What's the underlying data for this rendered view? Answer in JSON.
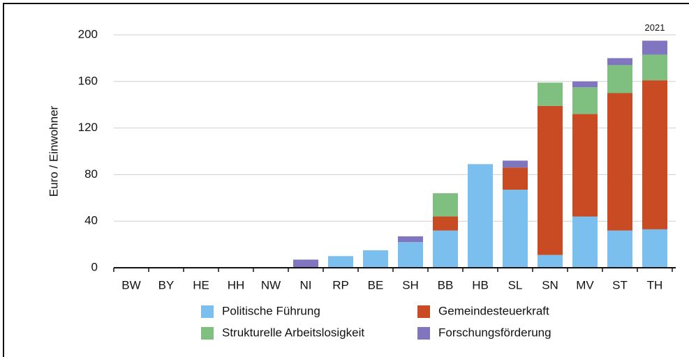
{
  "chart_data": {
    "type": "stacked_bar",
    "y_label": "Euro / Einwohner",
    "annotation": "2021",
    "categories": [
      "BW",
      "BY",
      "HE",
      "HH",
      "NW",
      "NI",
      "RP",
      "BE",
      "SH",
      "BB",
      "HB",
      "SL",
      "SN",
      "MV",
      "ST",
      "TH"
    ],
    "series": [
      {
        "name": "Politische Führung",
        "color": "#7bbfee",
        "values": [
          0,
          0,
          0,
          0,
          0,
          0,
          10,
          15,
          22,
          32,
          89,
          67,
          11,
          44,
          32,
          33
        ]
      },
      {
        "name": "Gemeindesteuerkraft",
        "color": "#c94b23",
        "values": [
          0,
          0,
          0,
          0,
          0,
          0,
          0,
          0,
          0,
          12,
          0,
          19,
          128,
          88,
          118,
          128
        ]
      },
      {
        "name": "Strukturelle Arbeitslosigkeit",
        "color": "#7fc080",
        "values": [
          0,
          0,
          0,
          0,
          0,
          0,
          0,
          0,
          0,
          20,
          0,
          0,
          20,
          23,
          24,
          22
        ]
      },
      {
        "name": "Forschungsförderung",
        "color": "#8076bf",
        "values": [
          0,
          0,
          0,
          0,
          0,
          7,
          0,
          0,
          5,
          0,
          0,
          6,
          0,
          5,
          6,
          12
        ]
      }
    ],
    "ylim": [
      0,
      200
    ],
    "yticks": [
      0,
      40,
      80,
      120,
      160,
      200
    ],
    "grid": true,
    "legend": "bottom"
  }
}
